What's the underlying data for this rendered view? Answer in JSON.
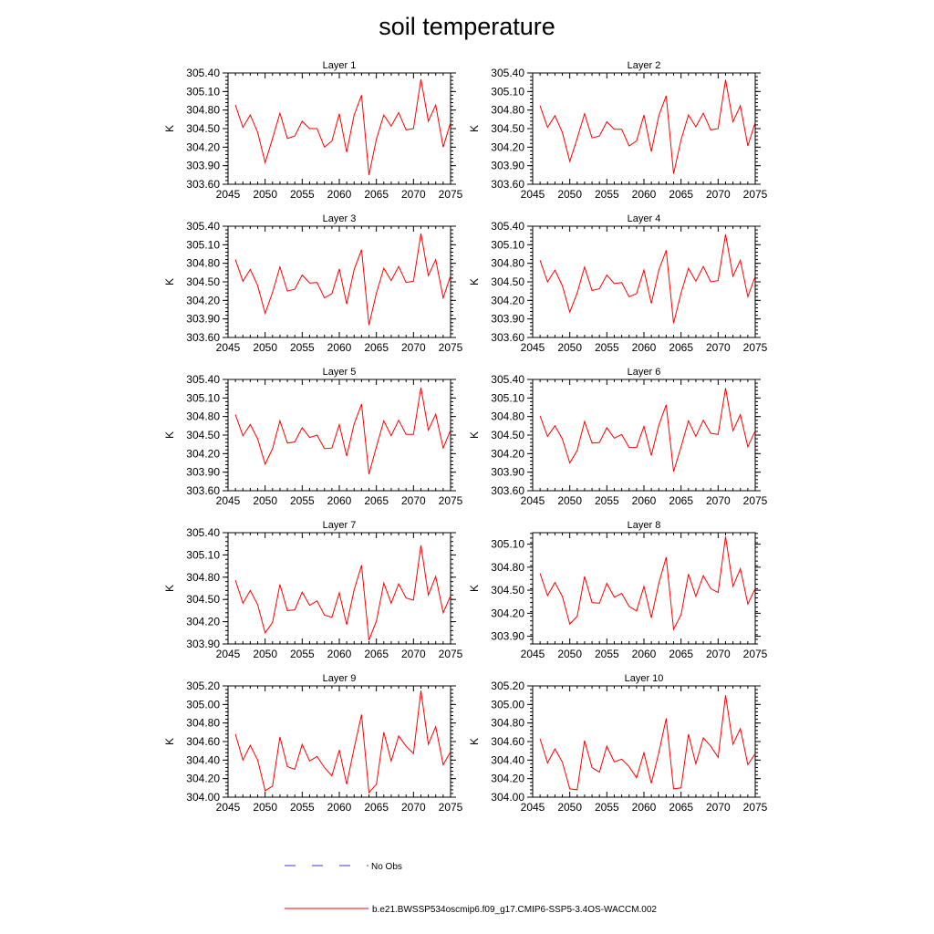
{
  "title": "soil temperature",
  "legend": {
    "obs_label": "No Obs",
    "model_label": "b.e21.BWSSP534oscmip6.f09_g17.CMIP6-SSP5-3.4OS-WACCM.002",
    "obs_color": "#3b3bd6",
    "model_color": "#ff0000"
  },
  "chart_data": [
    {
      "type": "line",
      "title": "Layer 1",
      "xlabel": "",
      "ylabel": "K",
      "xlim": [
        2045,
        2075
      ],
      "ylim": [
        303.6,
        305.4
      ],
      "xticks": [
        "2045",
        "2050",
        "2055",
        "2060",
        "2065",
        "2070",
        "2075"
      ],
      "yticks": [
        "303.60",
        "303.90",
        "304.20",
        "304.50",
        "304.80",
        "305.10",
        "305.40"
      ],
      "x": [
        2046,
        2047,
        2048,
        2049,
        2050,
        2051,
        2052,
        2053,
        2054,
        2055,
        2056,
        2057,
        2058,
        2059,
        2060,
        2061,
        2062,
        2063,
        2064,
        2065,
        2066,
        2067,
        2068,
        2069,
        2070,
        2071,
        2072,
        2073,
        2074,
        2075
      ],
      "series": [
        {
          "name": "b.e21.BWSSP534oscmip6.f09_g17.CMIP6-SSP5-3.4OS-WACCM.002",
          "color": "#ff0000",
          "values": [
            304.88,
            304.52,
            304.72,
            304.44,
            303.95,
            304.34,
            304.75,
            304.34,
            304.38,
            304.62,
            304.5,
            304.5,
            304.2,
            304.3,
            304.74,
            304.12,
            304.72,
            305.04,
            303.75,
            304.33,
            304.72,
            304.54,
            304.76,
            304.48,
            304.5,
            305.3,
            304.62,
            304.88,
            304.2,
            304.6
          ]
        }
      ]
    },
    {
      "type": "line",
      "title": "Layer 2",
      "xlabel": "",
      "ylabel": "K",
      "xlim": [
        2045,
        2075
      ],
      "ylim": [
        303.6,
        305.4
      ],
      "xticks": [
        "2045",
        "2050",
        "2055",
        "2060",
        "2065",
        "2070",
        "2075"
      ],
      "yticks": [
        "303.60",
        "303.90",
        "304.20",
        "304.50",
        "304.80",
        "305.10",
        "305.40"
      ],
      "x": [
        2046,
        2047,
        2048,
        2049,
        2050,
        2051,
        2052,
        2053,
        2054,
        2055,
        2056,
        2057,
        2058,
        2059,
        2060,
        2061,
        2062,
        2063,
        2064,
        2065,
        2066,
        2067,
        2068,
        2069,
        2070,
        2071,
        2072,
        2073,
        2074,
        2075
      ],
      "series": [
        {
          "name": "b.e21.BWSSP534oscmip6.f09_g17.CMIP6-SSP5-3.4OS-WACCM.002",
          "color": "#ff0000",
          "values": [
            304.87,
            304.52,
            304.71,
            304.44,
            303.97,
            304.34,
            304.74,
            304.35,
            304.38,
            304.61,
            304.49,
            304.49,
            304.22,
            304.3,
            304.72,
            304.13,
            304.71,
            305.03,
            303.77,
            304.32,
            304.72,
            304.53,
            304.75,
            304.48,
            304.5,
            305.29,
            304.61,
            304.87,
            304.22,
            304.6
          ]
        }
      ]
    },
    {
      "type": "line",
      "title": "Layer 3",
      "xlabel": "",
      "ylabel": "K",
      "xlim": [
        2045,
        2075
      ],
      "ylim": [
        303.6,
        305.4
      ],
      "xticks": [
        "2045",
        "2050",
        "2055",
        "2060",
        "2065",
        "2070",
        "2075"
      ],
      "yticks": [
        "303.60",
        "303.90",
        "304.20",
        "304.50",
        "304.80",
        "305.10",
        "305.40"
      ],
      "x": [
        2046,
        2047,
        2048,
        2049,
        2050,
        2051,
        2052,
        2053,
        2054,
        2055,
        2056,
        2057,
        2058,
        2059,
        2060,
        2061,
        2062,
        2063,
        2064,
        2065,
        2066,
        2067,
        2068,
        2069,
        2070,
        2071,
        2072,
        2073,
        2074,
        2075
      ],
      "series": [
        {
          "name": "b.e21.BWSSP534oscmip6.f09_g17.CMIP6-SSP5-3.4OS-WACCM.002",
          "color": "#ff0000",
          "values": [
            304.86,
            304.51,
            304.7,
            304.44,
            303.99,
            304.33,
            304.74,
            304.35,
            304.38,
            304.61,
            304.48,
            304.49,
            304.24,
            304.31,
            304.71,
            304.14,
            304.7,
            305.02,
            303.8,
            304.32,
            304.72,
            304.52,
            304.75,
            304.49,
            304.51,
            305.28,
            304.6,
            304.86,
            304.24,
            304.6
          ]
        }
      ]
    },
    {
      "type": "line",
      "title": "Layer 4",
      "xlabel": "",
      "ylabel": "K",
      "xlim": [
        2045,
        2075
      ],
      "ylim": [
        303.6,
        305.4
      ],
      "xticks": [
        "2045",
        "2050",
        "2055",
        "2060",
        "2065",
        "2070",
        "2075"
      ],
      "yticks": [
        "303.60",
        "303.90",
        "304.20",
        "304.50",
        "304.80",
        "305.10",
        "305.40"
      ],
      "x": [
        2046,
        2047,
        2048,
        2049,
        2050,
        2051,
        2052,
        2053,
        2054,
        2055,
        2056,
        2057,
        2058,
        2059,
        2060,
        2061,
        2062,
        2063,
        2064,
        2065,
        2066,
        2067,
        2068,
        2069,
        2070,
        2071,
        2072,
        2073,
        2074,
        2075
      ],
      "series": [
        {
          "name": "b.e21.BWSSP534oscmip6.f09_g17.CMIP6-SSP5-3.4OS-WACCM.002",
          "color": "#ff0000",
          "values": [
            304.85,
            304.5,
            304.69,
            304.44,
            304.01,
            304.32,
            304.74,
            304.36,
            304.39,
            304.61,
            304.47,
            304.49,
            304.26,
            304.31,
            304.69,
            304.15,
            304.69,
            305.01,
            303.83,
            304.32,
            304.72,
            304.51,
            304.75,
            304.5,
            304.52,
            305.27,
            304.59,
            304.85,
            304.26,
            304.59
          ]
        }
      ]
    },
    {
      "type": "line",
      "title": "Layer 5",
      "xlabel": "",
      "ylabel": "K",
      "xlim": [
        2045,
        2075
      ],
      "ylim": [
        303.6,
        305.4
      ],
      "xticks": [
        "2045",
        "2050",
        "2055",
        "2060",
        "2065",
        "2070",
        "2075"
      ],
      "yticks": [
        "303.60",
        "303.90",
        "304.20",
        "304.50",
        "304.80",
        "305.10",
        "305.40"
      ],
      "x": [
        2046,
        2047,
        2048,
        2049,
        2050,
        2051,
        2052,
        2053,
        2054,
        2055,
        2056,
        2057,
        2058,
        2059,
        2060,
        2061,
        2062,
        2063,
        2064,
        2065,
        2066,
        2067,
        2068,
        2069,
        2070,
        2071,
        2072,
        2073,
        2074,
        2075
      ],
      "series": [
        {
          "name": "b.e21.BWSSP534oscmip6.f09_g17.CMIP6-SSP5-3.4OS-WACCM.002",
          "color": "#ff0000",
          "values": [
            304.83,
            304.49,
            304.67,
            304.44,
            304.03,
            304.28,
            304.73,
            304.37,
            304.39,
            304.62,
            304.46,
            304.5,
            304.28,
            304.29,
            304.67,
            304.16,
            304.68,
            305.0,
            303.87,
            304.31,
            304.73,
            304.49,
            304.74,
            304.51,
            304.51,
            305.27,
            304.58,
            304.84,
            304.29,
            304.58
          ]
        }
      ]
    },
    {
      "type": "line",
      "title": "Layer 6",
      "xlabel": "",
      "ylabel": "K",
      "xlim": [
        2045,
        2075
      ],
      "ylim": [
        303.6,
        305.4
      ],
      "xticks": [
        "2045",
        "2050",
        "2055",
        "2060",
        "2065",
        "2070",
        "2075"
      ],
      "yticks": [
        "303.60",
        "303.90",
        "304.20",
        "304.50",
        "304.80",
        "305.10",
        "305.40"
      ],
      "x": [
        2046,
        2047,
        2048,
        2049,
        2050,
        2051,
        2052,
        2053,
        2054,
        2055,
        2056,
        2057,
        2058,
        2059,
        2060,
        2061,
        2062,
        2063,
        2064,
        2065,
        2066,
        2067,
        2068,
        2069,
        2070,
        2071,
        2072,
        2073,
        2074,
        2075
      ],
      "series": [
        {
          "name": "b.e21.BWSSP534oscmip6.f09_g17.CMIP6-SSP5-3.4OS-WACCM.002",
          "color": "#ff0000",
          "values": [
            304.81,
            304.48,
            304.65,
            304.44,
            304.05,
            304.25,
            304.72,
            304.37,
            304.38,
            304.62,
            304.45,
            304.51,
            304.3,
            304.3,
            304.64,
            304.17,
            304.66,
            304.99,
            303.91,
            304.31,
            304.73,
            304.48,
            304.74,
            304.53,
            304.51,
            305.26,
            304.57,
            304.83,
            304.31,
            304.57
          ]
        }
      ]
    },
    {
      "type": "line",
      "title": "Layer 7",
      "xlabel": "",
      "ylabel": "K",
      "xlim": [
        2045,
        2075
      ],
      "ylim": [
        303.9,
        305.4
      ],
      "xticks": [
        "2045",
        "2050",
        "2055",
        "2060",
        "2065",
        "2070",
        "2075"
      ],
      "yticks": [
        "303.90",
        "304.20",
        "304.50",
        "304.80",
        "305.10",
        "305.40"
      ],
      "x": [
        2046,
        2047,
        2048,
        2049,
        2050,
        2051,
        2052,
        2053,
        2054,
        2055,
        2056,
        2057,
        2058,
        2059,
        2060,
        2061,
        2062,
        2063,
        2064,
        2065,
        2066,
        2067,
        2068,
        2069,
        2070,
        2071,
        2072,
        2073,
        2074,
        2075
      ],
      "series": [
        {
          "name": "b.e21.BWSSP534oscmip6.f09_g17.CMIP6-SSP5-3.4OS-WACCM.002",
          "color": "#ff0000",
          "values": [
            304.76,
            304.45,
            304.62,
            304.43,
            304.05,
            304.19,
            304.7,
            304.35,
            304.36,
            304.6,
            304.42,
            304.48,
            304.29,
            304.26,
            304.59,
            304.16,
            304.63,
            304.96,
            303.95,
            304.21,
            304.72,
            304.45,
            304.71,
            304.52,
            304.49,
            305.23,
            304.56,
            304.81,
            304.32,
            304.55
          ]
        }
      ]
    },
    {
      "type": "line",
      "title": "Layer 8",
      "xlabel": "",
      "ylabel": "K",
      "xlim": [
        2045,
        2075
      ],
      "ylim": [
        303.8,
        305.25
      ],
      "xticks": [
        "2045",
        "2050",
        "2055",
        "2060",
        "2065",
        "2070",
        "2075"
      ],
      "yticks": [
        "303.90",
        "304.20",
        "304.50",
        "304.80",
        "305.10"
      ],
      "x": [
        2046,
        2047,
        2048,
        2049,
        2050,
        2051,
        2052,
        2053,
        2054,
        2055,
        2056,
        2057,
        2058,
        2059,
        2060,
        2061,
        2062,
        2063,
        2064,
        2065,
        2066,
        2067,
        2068,
        2069,
        2070,
        2071,
        2072,
        2073,
        2074,
        2075
      ],
      "series": [
        {
          "name": "b.e21.BWSSP534oscmip6.f09_g17.CMIP6-SSP5-3.4OS-WACCM.002",
          "color": "#ff0000",
          "values": [
            304.72,
            304.43,
            304.6,
            304.42,
            304.06,
            304.16,
            304.68,
            304.34,
            304.33,
            304.59,
            304.41,
            304.46,
            304.29,
            304.23,
            304.55,
            304.14,
            304.59,
            304.93,
            303.99,
            304.18,
            304.71,
            304.42,
            304.69,
            304.52,
            304.47,
            305.2,
            304.55,
            304.78,
            304.32,
            304.52
          ]
        }
      ]
    },
    {
      "type": "line",
      "title": "Layer 9",
      "xlabel": "",
      "ylabel": "K",
      "xlim": [
        2045,
        2075
      ],
      "ylim": [
        304.0,
        305.2
      ],
      "xticks": [
        "2045",
        "2050",
        "2055",
        "2060",
        "2065",
        "2070",
        "2075"
      ],
      "yticks": [
        "304.00",
        "304.20",
        "304.40",
        "304.60",
        "304.80",
        "305.00",
        "305.20"
      ],
      "x": [
        2046,
        2047,
        2048,
        2049,
        2050,
        2051,
        2052,
        2053,
        2054,
        2055,
        2056,
        2057,
        2058,
        2059,
        2060,
        2061,
        2062,
        2063,
        2064,
        2065,
        2066,
        2067,
        2068,
        2069,
        2070,
        2071,
        2072,
        2073,
        2074,
        2075
      ],
      "series": [
        {
          "name": "b.e21.BWSSP534oscmip6.f09_g17.CMIP6-SSP5-3.4OS-WACCM.002",
          "color": "#ff0000",
          "values": [
            304.68,
            304.4,
            304.56,
            304.4,
            304.07,
            304.12,
            304.65,
            304.33,
            304.3,
            304.57,
            304.39,
            304.44,
            304.32,
            304.23,
            304.51,
            304.14,
            304.53,
            304.89,
            304.05,
            304.14,
            304.7,
            304.39,
            304.66,
            304.55,
            304.47,
            305.15,
            304.57,
            304.76,
            304.35,
            304.49
          ]
        }
      ]
    },
    {
      "type": "line",
      "title": "Layer 10",
      "xlabel": "",
      "ylabel": "K",
      "xlim": [
        2045,
        2075
      ],
      "ylim": [
        304.0,
        305.2
      ],
      "xticks": [
        "2045",
        "2050",
        "2055",
        "2060",
        "2065",
        "2070",
        "2075"
      ],
      "yticks": [
        "304.00",
        "304.20",
        "304.40",
        "304.60",
        "304.80",
        "305.00",
        "305.20"
      ],
      "x": [
        2046,
        2047,
        2048,
        2049,
        2050,
        2051,
        2052,
        2053,
        2054,
        2055,
        2056,
        2057,
        2058,
        2059,
        2060,
        2061,
        2062,
        2063,
        2064,
        2065,
        2066,
        2067,
        2068,
        2069,
        2070,
        2071,
        2072,
        2073,
        2074,
        2075
      ],
      "series": [
        {
          "name": "b.e21.BWSSP534oscmip6.f09_g17.CMIP6-SSP5-3.4OS-WACCM.002",
          "color": "#ff0000",
          "values": [
            304.63,
            304.37,
            304.52,
            304.38,
            304.09,
            304.08,
            304.61,
            304.32,
            304.27,
            304.55,
            304.38,
            304.41,
            304.33,
            304.21,
            304.48,
            304.15,
            304.48,
            304.85,
            304.09,
            304.1,
            304.68,
            304.36,
            304.64,
            304.55,
            304.43,
            305.1,
            304.57,
            304.74,
            304.35,
            304.47
          ]
        }
      ]
    }
  ]
}
